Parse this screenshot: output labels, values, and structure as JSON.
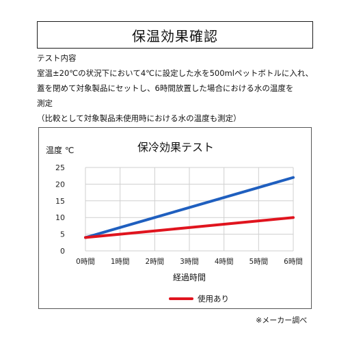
{
  "header": {
    "title": "保温効果確認"
  },
  "description": {
    "heading": "テスト内容",
    "lines": [
      "室温±20℃の状況下において4℃に設定した水を500mlペットボトルに入れ、",
      "蓋を閉めて対象製品にセットし、6時間放置した場合における水の温度を",
      "測定",
      "（比較として対象製品未使用時における水の温度も測定）"
    ]
  },
  "chart_data": {
    "type": "line",
    "title": "保冷効果テスト",
    "ylabel": "温度 ℃",
    "xlabel": "経過時間",
    "categories": [
      "0時間",
      "1時間",
      "2時間",
      "3時間",
      "4時間",
      "5時間",
      "6時間"
    ],
    "yticks": [
      0,
      5,
      10,
      15,
      20,
      25
    ],
    "ylim": [
      0,
      25
    ],
    "grid": true,
    "legend_position": "bottom",
    "series": [
      {
        "name": "",
        "color": "#1f5fbf",
        "values": [
          4,
          7,
          10,
          13,
          16,
          19,
          22
        ]
      },
      {
        "name": "使用あり",
        "color": "#e0141e",
        "values": [
          4,
          5,
          6,
          7,
          8,
          9,
          10
        ]
      }
    ]
  },
  "footnote": "※メーカー調べ"
}
